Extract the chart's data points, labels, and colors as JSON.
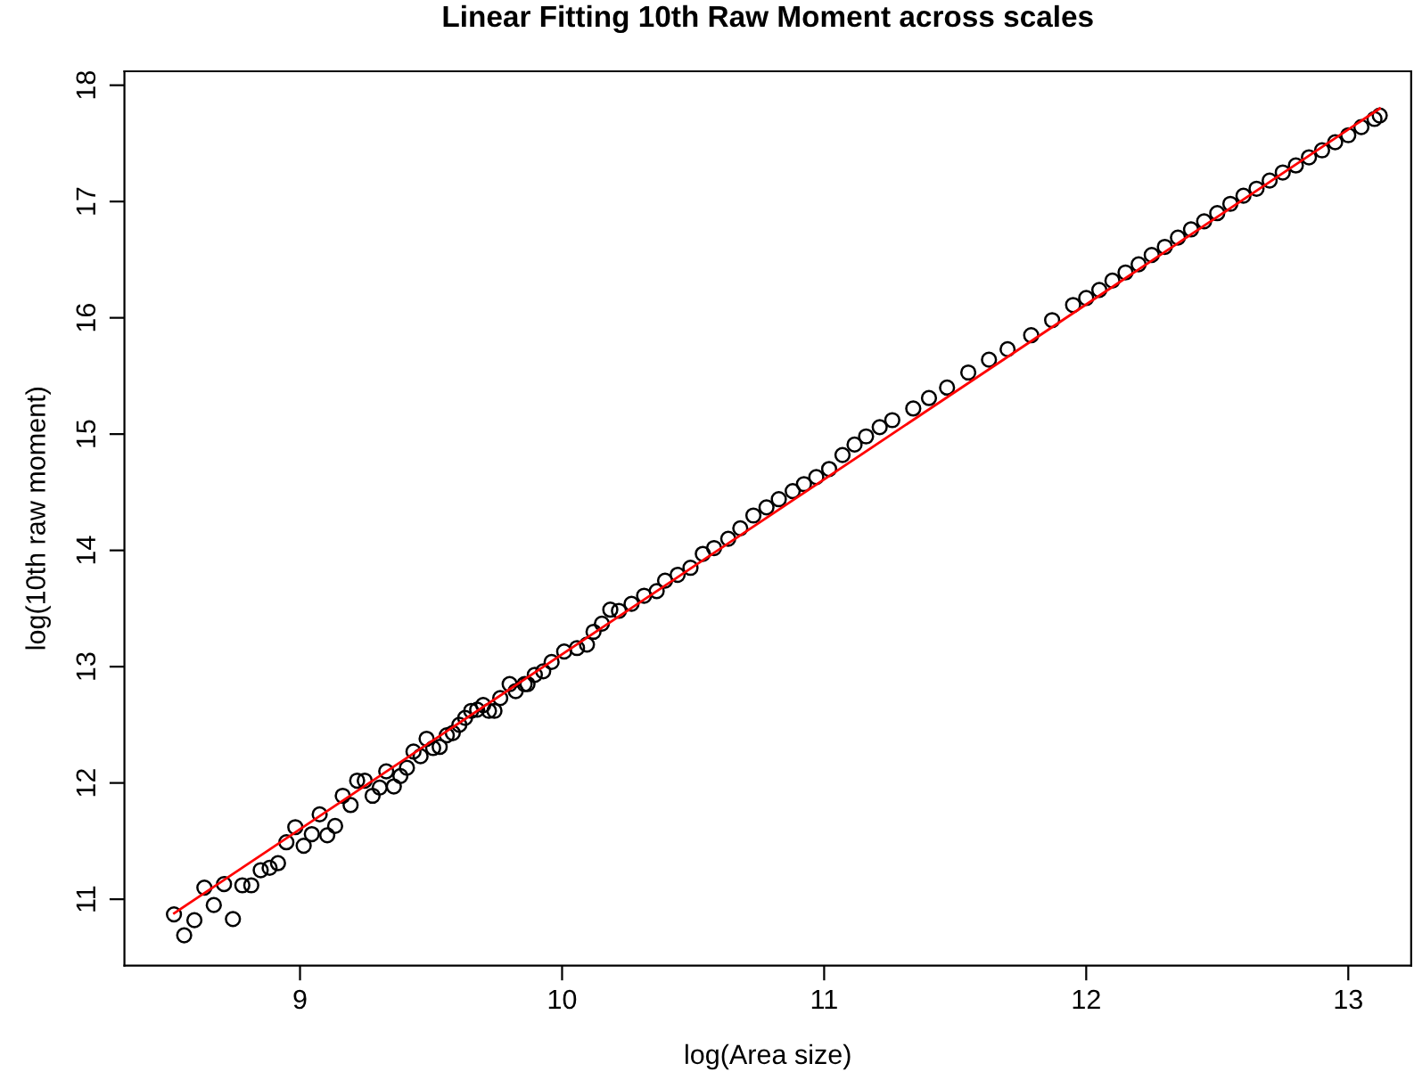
{
  "chart_data": {
    "type": "scatter",
    "title": "Linear Fitting 10th Raw Moment across scales",
    "xlabel": "log(Area size)",
    "ylabel": "log(10th raw moment)",
    "xlim": [
      8.33,
      13.24
    ],
    "ylim": [
      10.43,
      18.12
    ],
    "xticks": [
      9,
      10,
      11,
      12,
      13
    ],
    "yticks": [
      11,
      12,
      13,
      14,
      15,
      16,
      17,
      18
    ],
    "grid": false,
    "legend": false,
    "series": [
      {
        "marker": "circle",
        "color": "#000000",
        "x": [
          8.519,
          8.558,
          8.597,
          8.635,
          8.671,
          8.71,
          8.744,
          8.78,
          8.814,
          8.85,
          8.884,
          8.916,
          8.948,
          8.982,
          9.014,
          9.045,
          9.075,
          9.104,
          9.134,
          9.163,
          9.193,
          9.218,
          9.247,
          9.277,
          9.304,
          9.329,
          9.358,
          9.383,
          9.408,
          9.433,
          9.46,
          9.483,
          9.508,
          9.533,
          9.56,
          9.583,
          9.608,
          9.63,
          9.653,
          9.676,
          9.699,
          9.721,
          9.742,
          9.764,
          9.8,
          9.823,
          9.857,
          9.868,
          9.896,
          9.928,
          9.96,
          10.008,
          10.057,
          10.095,
          10.12,
          10.152,
          10.184,
          10.217,
          10.265,
          10.313,
          10.361,
          10.393,
          10.441,
          10.49,
          10.537,
          10.58,
          10.634,
          10.68,
          10.73,
          10.78,
          10.827,
          10.88,
          10.923,
          10.97,
          11.019,
          11.07,
          11.116,
          11.16,
          11.212,
          11.26,
          11.34,
          11.4,
          11.469,
          11.55,
          11.629,
          11.7,
          11.79,
          11.87,
          11.95,
          12.0,
          12.05,
          12.1,
          12.15,
          12.2,
          12.25,
          12.3,
          12.35,
          12.4,
          12.45,
          12.5,
          12.55,
          12.6,
          12.65,
          12.7,
          12.75,
          12.8,
          12.85,
          12.9,
          12.95,
          13.0,
          13.05,
          13.1,
          13.12
        ],
        "values": [
          10.87,
          10.69,
          10.82,
          11.1,
          10.95,
          11.13,
          10.83,
          11.12,
          11.12,
          11.25,
          11.27,
          11.31,
          11.49,
          11.62,
          11.46,
          11.56,
          11.73,
          11.55,
          11.63,
          11.89,
          11.81,
          12.02,
          12.02,
          11.89,
          11.96,
          12.1,
          11.97,
          12.06,
          12.13,
          12.27,
          12.23,
          12.38,
          12.3,
          12.31,
          12.41,
          12.43,
          12.5,
          12.56,
          12.62,
          12.63,
          12.67,
          12.62,
          12.62,
          12.73,
          12.85,
          12.79,
          12.85,
          12.85,
          12.93,
          12.96,
          13.04,
          13.13,
          13.16,
          13.19,
          13.3,
          13.37,
          13.49,
          13.48,
          13.54,
          13.61,
          13.65,
          13.74,
          13.79,
          13.85,
          13.97,
          14.02,
          14.1,
          14.19,
          14.3,
          14.37,
          14.44,
          14.51,
          14.57,
          14.63,
          14.7,
          14.82,
          14.91,
          14.98,
          15.06,
          15.12,
          15.22,
          15.31,
          15.4,
          15.53,
          15.64,
          15.73,
          15.85,
          15.98,
          16.11,
          16.17,
          16.24,
          16.32,
          16.39,
          16.46,
          16.54,
          16.61,
          16.69,
          16.76,
          16.83,
          16.9,
          16.98,
          17.05,
          17.11,
          17.18,
          17.25,
          17.31,
          17.38,
          17.44,
          17.51,
          17.57,
          17.64,
          17.71,
          17.74
        ]
      },
      {
        "type": "line",
        "line_style": "solid",
        "color": "#ff0000",
        "x": [
          8.52,
          13.12
        ],
        "values": [
          10.88,
          17.8
        ]
      }
    ]
  }
}
